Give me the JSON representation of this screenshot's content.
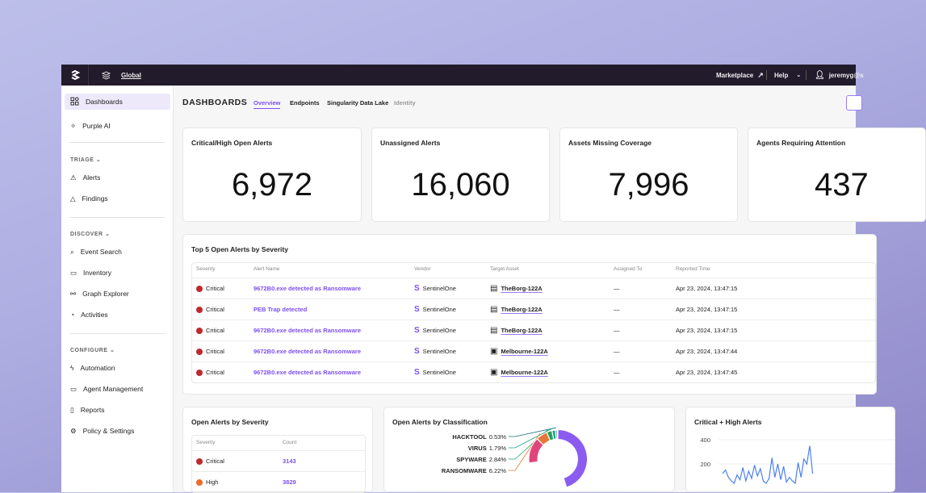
{
  "topbar": {
    "scope": "Global",
    "marketplace": "Marketplace",
    "help": "Help",
    "user": "jeremyg@s"
  },
  "sidebar": {
    "items": [
      {
        "label": "Dashboards",
        "icon": "grid-icon"
      },
      {
        "label": "Purple AI",
        "icon": "sparkle-icon"
      },
      {
        "label": "Alerts",
        "icon": "siren-icon"
      },
      {
        "label": "Findings",
        "icon": "warning-icon"
      },
      {
        "label": "Event Search",
        "icon": "search-icon"
      },
      {
        "label": "Inventory",
        "icon": "inventory-icon"
      },
      {
        "label": "Graph Explorer",
        "icon": "graph-icon"
      },
      {
        "label": "Activities",
        "icon": "activity-icon"
      },
      {
        "label": "Automation",
        "icon": "bolt-icon"
      },
      {
        "label": "Agent Management",
        "icon": "agent-icon"
      },
      {
        "label": "Reports",
        "icon": "report-icon"
      },
      {
        "label": "Policy & Settings",
        "icon": "gear-icon"
      }
    ],
    "sections": [
      "TRIAGE",
      "DISCOVER",
      "CONFIGURE"
    ]
  },
  "header": {
    "title": "DASHBOARDS",
    "tabs": [
      "Overview",
      "Endpoints",
      "Singularity Data Lake",
      "Identity"
    ],
    "active_tab": "Overview"
  },
  "stats": [
    {
      "label": "Critical/High Open Alerts",
      "value": "6,972"
    },
    {
      "label": "Unassigned Alerts",
      "value": "16,060"
    },
    {
      "label": "Assets Missing Coverage",
      "value": "7,996"
    },
    {
      "label": "Agents Requiring Attention",
      "value": "437"
    }
  ],
  "top_alerts": {
    "title": "Top 5 Open Alerts by Severity",
    "columns": [
      "Severity",
      "Alert Name",
      "Vendor",
      "Target Asset",
      "Assigned To",
      "Reported Time"
    ],
    "rows": [
      {
        "severity": "Critical",
        "name": "9672B0.exe detected as Ransomware",
        "vendor": "SentinelOne",
        "asset": "TheBorg-122A",
        "asset_icon": "server-icon",
        "assigned": "—",
        "time": "Apr 23, 2024, 13:47:15"
      },
      {
        "severity": "Critical",
        "name": "PEB Trap detected",
        "vendor": "SentinelOne",
        "asset": "TheBorg-122A",
        "asset_icon": "server-icon",
        "assigned": "—",
        "time": "Apr 23, 2024, 13:47:15"
      },
      {
        "severity": "Critical",
        "name": "9672B0.exe detected as Ransomware",
        "vendor": "SentinelOne",
        "asset": "TheBorg-122A",
        "asset_icon": "server-icon",
        "assigned": "—",
        "time": "Apr 23, 2024, 13:47:15"
      },
      {
        "severity": "Critical",
        "name": "9672B0.exe detected as Ransomware",
        "vendor": "SentinelOne",
        "asset": "Melbourne-122A",
        "asset_icon": "desktop-icon",
        "assigned": "—",
        "time": "Apr 23, 2024, 13:47:44"
      },
      {
        "severity": "Critical",
        "name": "9672B0.exe detected as Ransomware",
        "vendor": "SentinelOne",
        "asset": "Melbourne-122A",
        "asset_icon": "desktop-icon",
        "assigned": "—",
        "time": "Apr 23, 2024, 13:47:45"
      }
    ]
  },
  "severity_card": {
    "title": "Open Alerts by Severity",
    "columns": [
      "Severity",
      "Count"
    ],
    "rows": [
      {
        "severity": "Critical",
        "count": "3143",
        "color": "#c0282d"
      },
      {
        "severity": "High",
        "count": "3829",
        "color": "#ee6a2b"
      }
    ]
  },
  "chart_data": [
    {
      "type": "pie",
      "title": "Open Alerts by Classification",
      "slices": [
        {
          "label": "HACKTOOL",
          "value": 0.53,
          "pct": "0.53%",
          "color": "#1d6f7a"
        },
        {
          "label": "VIRUS",
          "value": 1.79,
          "pct": "1.79%",
          "color": "#17a08a"
        },
        {
          "label": "SPYWARE",
          "value": 2.84,
          "pct": "2.84%",
          "color": "#24a25b"
        },
        {
          "label": "RANSOMWARE",
          "value": 6.22,
          "pct": "6.22%",
          "color": "#e8763a"
        }
      ],
      "other_colors": [
        "#e0457a",
        "#8c5cf0"
      ]
    },
    {
      "type": "line",
      "title": "Critical + High Alerts",
      "yticks": [
        "400",
        "200"
      ],
      "ylim": [
        0,
        400
      ],
      "color": "#4c7ff0",
      "values": [
        120,
        150,
        90,
        60,
        40,
        110,
        70,
        170,
        60,
        140,
        80,
        190,
        100,
        160,
        60,
        40,
        80,
        250,
        90,
        200,
        70,
        180,
        50,
        90,
        60,
        40,
        210,
        90,
        240,
        200,
        350,
        120
      ]
    }
  ]
}
